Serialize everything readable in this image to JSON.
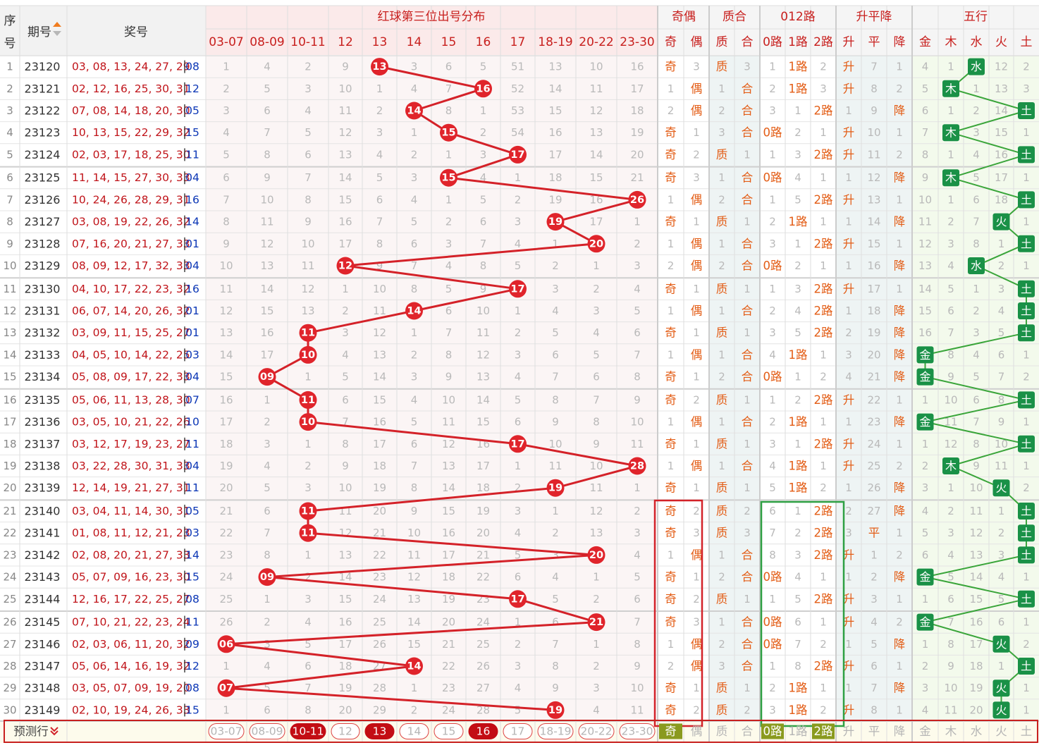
{
  "headers": {
    "seq_a": "序",
    "seq_b": "号",
    "period": "期号",
    "award": "奖号",
    "dist_title": "红球第三位出号分布",
    "g_odd": "奇偶",
    "g_prime": "质合",
    "g_012": "012路",
    "g_trend": "升平降",
    "g_wx": "五行"
  },
  "dist_cols": [
    "03-07",
    "08-09",
    "10-11",
    "12",
    "13",
    "14",
    "15",
    "16",
    "17",
    "18-19",
    "20-22",
    "23-30"
  ],
  "odd_cols": [
    "奇",
    "偶"
  ],
  "prime_cols": [
    "质",
    "合"
  ],
  "road_cols": [
    "0路",
    "1路",
    "2路"
  ],
  "trend_cols": [
    "升",
    "平",
    "降"
  ],
  "wx_cols": [
    "金",
    "木",
    "水",
    "火",
    "土"
  ],
  "predict_label": "预测行",
  "predict_highlight": {
    "dist": [
      false,
      false,
      true,
      false,
      true,
      false,
      false,
      true,
      false,
      false,
      false,
      false
    ],
    "odd": [
      true,
      false
    ],
    "road": [
      true,
      false,
      true
    ]
  },
  "rows": [
    {
      "period": "23120",
      "nums": "03, 08, 13, 24, 27, 29",
      "blue": "08",
      "dist": [
        1,
        4,
        2,
        9,
        "13",
        3,
        6,
        5,
        51,
        13,
        10,
        16
      ],
      "odd": [
        "奇",
        3
      ],
      "prime": [
        "质",
        3
      ],
      "road": [
        1,
        "1路",
        2
      ],
      "trend": [
        "升",
        7,
        1
      ],
      "wx": [
        4,
        1,
        "水",
        12,
        2
      ]
    },
    {
      "period": "23121",
      "nums": "02, 12, 16, 25, 30, 31",
      "blue": "12",
      "dist": [
        2,
        5,
        3,
        10,
        1,
        4,
        7,
        "16",
        52,
        14,
        11,
        17
      ],
      "odd": [
        1,
        "偶"
      ],
      "prime": [
        1,
        "合"
      ],
      "road": [
        2,
        "1路",
        3
      ],
      "trend": [
        "升",
        8,
        2
      ],
      "wx": [
        5,
        "木",
        1,
        13,
        3
      ]
    },
    {
      "period": "23122",
      "nums": "07, 08, 14, 18, 20, 30",
      "blue": "05",
      "dist": [
        3,
        6,
        4,
        11,
        2,
        "14",
        8,
        1,
        53,
        15,
        12,
        18
      ],
      "odd": [
        2,
        "偶"
      ],
      "prime": [
        2,
        "合"
      ],
      "road": [
        3,
        1,
        "2路"
      ],
      "trend": [
        1,
        9,
        "降"
      ],
      "wx": [
        6,
        1,
        2,
        14,
        "土"
      ]
    },
    {
      "period": "23123",
      "nums": "10, 13, 15, 22, 29, 32",
      "blue": "15",
      "dist": [
        4,
        7,
        5,
        12,
        3,
        1,
        "15",
        2,
        54,
        16,
        13,
        19
      ],
      "odd": [
        "奇",
        1
      ],
      "prime": [
        3,
        "合"
      ],
      "road": [
        "0路",
        2,
        1
      ],
      "trend": [
        "升",
        10,
        1
      ],
      "wx": [
        7,
        "木",
        3,
        15,
        1
      ]
    },
    {
      "period": "23124",
      "nums": "02, 03, 17, 18, 25, 30",
      "blue": "11",
      "dist": [
        5,
        8,
        6,
        13,
        4,
        2,
        1,
        3,
        "17",
        17,
        14,
        20
      ],
      "odd": [
        "奇",
        2
      ],
      "prime": [
        "质",
        1
      ],
      "road": [
        1,
        3,
        "2路"
      ],
      "trend": [
        "升",
        11,
        2
      ],
      "wx": [
        8,
        1,
        4,
        16,
        "土"
      ]
    },
    {
      "period": "23125",
      "nums": "11, 14, 15, 27, 30, 33",
      "blue": "04",
      "dist": [
        6,
        9,
        7,
        14,
        5,
        3,
        "15",
        4,
        1,
        18,
        15,
        21
      ],
      "odd": [
        "奇",
        3
      ],
      "prime": [
        1,
        "合"
      ],
      "road": [
        "0路",
        4,
        1
      ],
      "trend": [
        1,
        12,
        "降"
      ],
      "wx": [
        9,
        "木",
        5,
        17,
        1
      ]
    },
    {
      "period": "23126",
      "nums": "10, 24, 26, 28, 29, 31",
      "blue": "16",
      "dist": [
        7,
        10,
        8,
        15,
        6,
        4,
        1,
        5,
        2,
        19,
        16,
        "26"
      ],
      "odd": [
        1,
        "偶"
      ],
      "prime": [
        2,
        "合"
      ],
      "road": [
        1,
        5,
        "2路"
      ],
      "trend": [
        "升",
        13,
        1
      ],
      "wx": [
        10,
        1,
        6,
        18,
        "土"
      ]
    },
    {
      "period": "23127",
      "nums": "03, 08, 19, 22, 26, 32",
      "blue": "14",
      "dist": [
        8,
        11,
        9,
        16,
        7,
        5,
        2,
        6,
        3,
        "19",
        17,
        1
      ],
      "odd": [
        "奇",
        1
      ],
      "prime": [
        "质",
        1
      ],
      "road": [
        2,
        "1路",
        1
      ],
      "trend": [
        1,
        14,
        "降"
      ],
      "wx": [
        11,
        2,
        7,
        "火",
        1
      ]
    },
    {
      "period": "23128",
      "nums": "07, 16, 20, 21, 27, 33",
      "blue": "01",
      "dist": [
        9,
        12,
        10,
        17,
        8,
        6,
        3,
        7,
        4,
        1,
        "20",
        2
      ],
      "odd": [
        1,
        "偶"
      ],
      "prime": [
        1,
        "合"
      ],
      "road": [
        3,
        1,
        "2路"
      ],
      "trend": [
        "升",
        15,
        1
      ],
      "wx": [
        12,
        3,
        8,
        1,
        "土"
      ]
    },
    {
      "period": "23129",
      "nums": "08, 09, 12, 17, 32, 33",
      "blue": "04",
      "dist": [
        10,
        13,
        11,
        "12",
        9,
        7,
        4,
        8,
        5,
        2,
        1,
        3
      ],
      "odd": [
        2,
        "偶"
      ],
      "prime": [
        2,
        "合"
      ],
      "road": [
        "0路",
        2,
        1
      ],
      "trend": [
        1,
        16,
        "降"
      ],
      "wx": [
        13,
        4,
        "水",
        2,
        1
      ]
    },
    {
      "period": "23130",
      "nums": "04, 10, 17, 22, 23, 32",
      "blue": "16",
      "dist": [
        11,
        14,
        12,
        1,
        10,
        8,
        5,
        9,
        "17",
        3,
        2,
        4
      ],
      "odd": [
        "奇",
        1
      ],
      "prime": [
        "质",
        1
      ],
      "road": [
        1,
        3,
        "2路"
      ],
      "trend": [
        "升",
        17,
        1
      ],
      "wx": [
        14,
        5,
        1,
        3,
        "土"
      ]
    },
    {
      "period": "23131",
      "nums": "06, 07, 14, 20, 26, 32",
      "blue": "01",
      "dist": [
        12,
        15,
        13,
        2,
        11,
        "14",
        6,
        10,
        1,
        4,
        3,
        5
      ],
      "odd": [
        1,
        "偶"
      ],
      "prime": [
        1,
        "合"
      ],
      "road": [
        2,
        4,
        "2路"
      ],
      "trend": [
        1,
        18,
        "降"
      ],
      "wx": [
        15,
        6,
        2,
        4,
        "土"
      ]
    },
    {
      "period": "23132",
      "nums": "03, 09, 11, 15, 25, 27",
      "blue": "01",
      "dist": [
        13,
        16,
        "11",
        3,
        12,
        1,
        7,
        11,
        2,
        5,
        4,
        6
      ],
      "odd": [
        "奇",
        1
      ],
      "prime": [
        "质",
        1
      ],
      "road": [
        3,
        5,
        "2路"
      ],
      "trend": [
        2,
        19,
        "降"
      ],
      "wx": [
        16,
        7,
        3,
        5,
        "土"
      ]
    },
    {
      "period": "23133",
      "nums": "04, 05, 10, 14, 22, 25",
      "blue": "03",
      "dist": [
        14,
        17,
        "10",
        4,
        13,
        2,
        8,
        12,
        3,
        6,
        5,
        7
      ],
      "odd": [
        1,
        "偶"
      ],
      "prime": [
        1,
        "合"
      ],
      "road": [
        4,
        "1路",
        1
      ],
      "trend": [
        3,
        20,
        "降"
      ],
      "wx": [
        "金",
        8,
        4,
        6,
        1
      ]
    },
    {
      "period": "23134",
      "nums": "05, 08, 09, 17, 22, 33",
      "blue": "04",
      "dist": [
        15,
        "09",
        1,
        5,
        14,
        3,
        9,
        13,
        4,
        7,
        6,
        8
      ],
      "odd": [
        "奇",
        1
      ],
      "prime": [
        2,
        "合"
      ],
      "road": [
        "0路",
        1,
        2
      ],
      "trend": [
        4,
        21,
        "降"
      ],
      "wx": [
        "金",
        9,
        5,
        7,
        2
      ]
    },
    {
      "period": "23135",
      "nums": "05, 06, 11, 13, 28, 30",
      "blue": "07",
      "dist": [
        16,
        1,
        "11",
        6,
        15,
        4,
        10,
        14,
        5,
        8,
        7,
        9
      ],
      "odd": [
        "奇",
        2
      ],
      "prime": [
        "质",
        1
      ],
      "road": [
        1,
        2,
        "2路"
      ],
      "trend": [
        "升",
        22,
        1
      ],
      "wx": [
        1,
        10,
        6,
        8,
        "土"
      ]
    },
    {
      "period": "23136",
      "nums": "03, 05, 10, 21, 22, 26",
      "blue": "10",
      "dist": [
        17,
        2,
        "10",
        7,
        16,
        5,
        11,
        15,
        6,
        9,
        8,
        10
      ],
      "odd": [
        1,
        "偶"
      ],
      "prime": [
        1,
        "合"
      ],
      "road": [
        2,
        "1路",
        1
      ],
      "trend": [
        1,
        23,
        "降"
      ],
      "wx": [
        "金",
        11,
        7,
        9,
        1
      ]
    },
    {
      "period": "23137",
      "nums": "03, 12, 17, 19, 23, 27",
      "blue": "11",
      "dist": [
        18,
        3,
        1,
        8,
        17,
        6,
        12,
        16,
        "17",
        10,
        9,
        11
      ],
      "odd": [
        "奇",
        1
      ],
      "prime": [
        "质",
        1
      ],
      "road": [
        3,
        1,
        "2路"
      ],
      "trend": [
        "升",
        24,
        1
      ],
      "wx": [
        1,
        12,
        8,
        10,
        "土"
      ]
    },
    {
      "period": "23138",
      "nums": "03, 22, 28, 30, 31, 33",
      "blue": "04",
      "dist": [
        19,
        4,
        2,
        9,
        18,
        7,
        13,
        17,
        1,
        11,
        10,
        "28"
      ],
      "odd": [
        1,
        "偶"
      ],
      "prime": [
        1,
        "合"
      ],
      "road": [
        4,
        "1路",
        1
      ],
      "trend": [
        "升",
        25,
        2
      ],
      "wx": [
        2,
        "木",
        9,
        11,
        1
      ]
    },
    {
      "period": "23139",
      "nums": "12, 14, 19, 21, 27, 31",
      "blue": "11",
      "dist": [
        20,
        5,
        3,
        10,
        19,
        8,
        14,
        18,
        2,
        "19",
        11,
        1
      ],
      "odd": [
        "奇",
        1
      ],
      "prime": [
        "质",
        1
      ],
      "road": [
        5,
        "1路",
        2
      ],
      "trend": [
        1,
        26,
        "降"
      ],
      "wx": [
        3,
        1,
        10,
        "火",
        2
      ]
    },
    {
      "period": "23140",
      "nums": "03, 04, 11, 14, 30, 31",
      "blue": "05",
      "dist": [
        21,
        6,
        "11",
        11,
        20,
        9,
        15,
        19,
        3,
        1,
        12,
        2
      ],
      "odd": [
        "奇",
        2
      ],
      "prime": [
        "质",
        2
      ],
      "road": [
        6,
        1,
        "2路"
      ],
      "trend": [
        2,
        27,
        "降"
      ],
      "wx": [
        4,
        2,
        11,
        1,
        "土"
      ]
    },
    {
      "period": "23141",
      "nums": "01, 08, 11, 12, 21, 23",
      "blue": "03",
      "dist": [
        22,
        7,
        "11",
        12,
        21,
        10,
        16,
        20,
        4,
        2,
        13,
        3
      ],
      "odd": [
        "奇",
        3
      ],
      "prime": [
        "质",
        3
      ],
      "road": [
        7,
        2,
        "2路"
      ],
      "trend": [
        3,
        "平",
        1
      ],
      "wx": [
        5,
        3,
        12,
        2,
        "土"
      ]
    },
    {
      "period": "23142",
      "nums": "02, 08, 20, 21, 27, 33",
      "blue": "14",
      "dist": [
        23,
        8,
        1,
        13,
        22,
        11,
        17,
        21,
        5,
        3,
        "20",
        4
      ],
      "odd": [
        1,
        "偶"
      ],
      "prime": [
        1,
        "合"
      ],
      "road": [
        8,
        3,
        "2路"
      ],
      "trend": [
        "升",
        1,
        2
      ],
      "wx": [
        6,
        4,
        13,
        3,
        "土"
      ]
    },
    {
      "period": "23143",
      "nums": "05, 07, 09, 16, 23, 30",
      "blue": "15",
      "dist": [
        24,
        "09",
        2,
        14,
        23,
        12,
        18,
        22,
        6,
        4,
        1,
        5
      ],
      "odd": [
        "奇",
        1
      ],
      "prime": [
        2,
        "合"
      ],
      "road": [
        "0路",
        4,
        1
      ],
      "trend": [
        1,
        2,
        "降"
      ],
      "wx": [
        "金",
        5,
        14,
        4,
        1
      ]
    },
    {
      "period": "23144",
      "nums": "12, 16, 17, 22, 25, 27",
      "blue": "08",
      "dist": [
        25,
        1,
        3,
        15,
        24,
        13,
        19,
        23,
        "17",
        5,
        2,
        6
      ],
      "odd": [
        "奇",
        2
      ],
      "prime": [
        "质",
        1
      ],
      "road": [
        1,
        5,
        "2路"
      ],
      "trend": [
        "升",
        3,
        1
      ],
      "wx": [
        1,
        6,
        15,
        5,
        "土"
      ]
    },
    {
      "period": "23145",
      "nums": "07, 10, 21, 22, 23, 24",
      "blue": "11",
      "dist": [
        26,
        2,
        4,
        16,
        25,
        14,
        20,
        24,
        1,
        6,
        "21",
        7
      ],
      "odd": [
        "奇",
        3
      ],
      "prime": [
        1,
        "合"
      ],
      "road": [
        "0路",
        6,
        1
      ],
      "trend": [
        "升",
        4,
        2
      ],
      "wx": [
        "金",
        7,
        16,
        6,
        1
      ]
    },
    {
      "period": "23146",
      "nums": "02, 03, 06, 11, 20, 32",
      "blue": "09",
      "dist": [
        "06",
        3,
        5,
        17,
        26,
        15,
        21,
        25,
        2,
        7,
        1,
        8
      ],
      "odd": [
        1,
        "偶"
      ],
      "prime": [
        2,
        "合"
      ],
      "road": [
        "0路",
        7,
        2
      ],
      "trend": [
        1,
        5,
        "降"
      ],
      "wx": [
        1,
        8,
        17,
        "火",
        2
      ]
    },
    {
      "period": "23147",
      "nums": "05, 06, 14, 16, 19, 32",
      "blue": "12",
      "dist": [
        1,
        4,
        6,
        18,
        27,
        "14",
        22,
        26,
        3,
        8,
        2,
        9
      ],
      "odd": [
        2,
        "偶"
      ],
      "prime": [
        3,
        "合"
      ],
      "road": [
        1,
        8,
        "2路"
      ],
      "trend": [
        "升",
        6,
        1
      ],
      "wx": [
        2,
        9,
        18,
        1,
        "土"
      ]
    },
    {
      "period": "23148",
      "nums": "03, 05, 07, 09, 19, 20",
      "blue": "08",
      "dist": [
        "07",
        5,
        7,
        19,
        28,
        1,
        23,
        27,
        4,
        9,
        3,
        10
      ],
      "odd": [
        "奇",
        1
      ],
      "prime": [
        "质",
        1
      ],
      "road": [
        2,
        "1路",
        1
      ],
      "trend": [
        1,
        7,
        "降"
      ],
      "wx": [
        3,
        10,
        19,
        "火",
        1
      ]
    },
    {
      "period": "23149",
      "nums": "02, 10, 19, 24, 26, 33",
      "blue": "15",
      "dist": [
        1,
        6,
        8,
        20,
        29,
        2,
        24,
        28,
        5,
        "19",
        4,
        11
      ],
      "odd": [
        "奇",
        2
      ],
      "prime": [
        "质",
        2
      ],
      "road": [
        3,
        "1路",
        2
      ],
      "trend": [
        "升",
        8,
        1
      ],
      "wx": [
        4,
        11,
        20,
        "火",
        1
      ]
    }
  ],
  "colors": {
    "red_ball": "#e0242b",
    "red_line": "#d42128",
    "green_ball": "#1a9147",
    "green_line": "#3aa53a",
    "hit_text": "#e35d16",
    "red_text": "#c0141a",
    "blue_text": "#0b36b5",
    "highlight_red": "#d32229",
    "highlight_green": "#2ea043",
    "miss_text": "#b9b9b9"
  }
}
